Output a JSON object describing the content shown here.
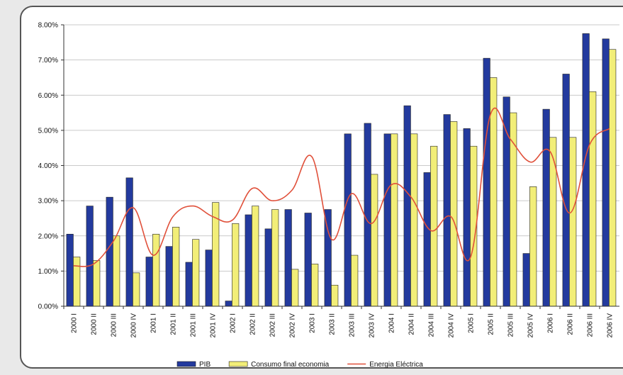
{
  "chart_data": {
    "type": "bar",
    "title": "",
    "xlabel": "",
    "ylabel": "",
    "ylim": [
      0,
      8
    ],
    "y_ticks": [
      "0.00%",
      "1.00%",
      "2.00%",
      "3.00%",
      "4.00%",
      "5.00%",
      "6.00%",
      "7.00%",
      "8.00%"
    ],
    "grid": true,
    "legend_position": "bottom",
    "categories": [
      "2000 I",
      "2000 II",
      "2000 III",
      "2000 IV",
      "2001 I",
      "2001 II",
      "2001 III",
      "2001 IV",
      "2002 I",
      "2002 II",
      "2002 III",
      "2002 IV",
      "2003 I",
      "2003 II",
      "2003 III",
      "2003 IV",
      "2004 I",
      "2004 II",
      "2004 III",
      "2004 IV",
      "2005 I",
      "2005 II",
      "2005 III",
      "2005 IV",
      "2006 I",
      "2006 II",
      "2006 III",
      "2006 IV"
    ],
    "series": [
      {
        "name": "PIB",
        "kind": "bar",
        "color": "#233a9e",
        "values": [
          2.05,
          2.85,
          3.1,
          3.65,
          1.4,
          1.7,
          1.25,
          1.6,
          0.15,
          2.6,
          2.2,
          2.75,
          2.65,
          2.75,
          4.9,
          5.2,
          4.9,
          5.7,
          3.8,
          5.45,
          5.05,
          7.05,
          5.95,
          1.5,
          5.6,
          6.6,
          7.75,
          7.6
        ]
      },
      {
        "name": "Consumo final economia",
        "kind": "bar",
        "color": "#f2ee78",
        "values": [
          1.4,
          1.3,
          2.0,
          0.95,
          2.05,
          2.25,
          1.9,
          2.95,
          2.35,
          2.85,
          2.75,
          1.05,
          1.2,
          0.6,
          1.45,
          3.75,
          4.9,
          4.9,
          4.55,
          5.25,
          4.55,
          6.5,
          5.5,
          3.4,
          4.8,
          4.8,
          6.1,
          7.3
        ]
      },
      {
        "name": "Energia Eléctrica",
        "kind": "line",
        "color": "#e0503a",
        "values": [
          1.15,
          1.2,
          1.85,
          2.8,
          1.45,
          2.55,
          2.85,
          2.55,
          2.45,
          3.35,
          3.0,
          3.3,
          4.25,
          1.9,
          3.2,
          2.35,
          3.45,
          3.1,
          2.15,
          2.55,
          1.4,
          5.45,
          4.75,
          4.1,
          4.4,
          2.65,
          4.6,
          5.05
        ]
      }
    ]
  }
}
